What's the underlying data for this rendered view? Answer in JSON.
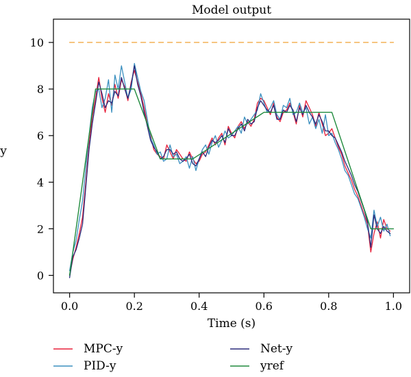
{
  "chart_data": {
    "type": "line",
    "title": "Model output",
    "xlabel": "Time (s)",
    "ylabel": "y",
    "xlim": [
      -0.05,
      1.05
    ],
    "ylim": [
      -0.75,
      11
    ],
    "xticks": [
      0.0,
      0.2,
      0.4,
      0.6,
      0.8,
      1.0
    ],
    "xtick_labels": [
      "0.0",
      "0.2",
      "0.4",
      "0.6",
      "0.8",
      "1.0"
    ],
    "yticks": [
      0,
      2,
      4,
      6,
      8,
      10
    ],
    "ytick_labels": [
      "0",
      "2",
      "4",
      "6",
      "8",
      "10"
    ],
    "grid": false,
    "legend_position": "bottom",
    "colors": {
      "mpc": "#e8203a",
      "pid": "#3a8fbf",
      "net": "#2a2a7a",
      "yref": "#1f8a3c",
      "limit": "#f0a030"
    },
    "series": [
      {
        "name": "MPC-y",
        "color": "#e8203a",
        "dash": "",
        "x": [
          0.0,
          0.01,
          0.02,
          0.03,
          0.04,
          0.05,
          0.06,
          0.07,
          0.08,
          0.09,
          0.1,
          0.11,
          0.12,
          0.13,
          0.14,
          0.15,
          0.16,
          0.17,
          0.18,
          0.19,
          0.2,
          0.21,
          0.22,
          0.23,
          0.24,
          0.25,
          0.26,
          0.27,
          0.28,
          0.29,
          0.3,
          0.31,
          0.32,
          0.33,
          0.34,
          0.35,
          0.36,
          0.37,
          0.38,
          0.39,
          0.4,
          0.41,
          0.42,
          0.43,
          0.44,
          0.45,
          0.46,
          0.47,
          0.48,
          0.49,
          0.5,
          0.51,
          0.52,
          0.53,
          0.54,
          0.55,
          0.56,
          0.57,
          0.58,
          0.59,
          0.6,
          0.61,
          0.62,
          0.63,
          0.64,
          0.65,
          0.66,
          0.67,
          0.68,
          0.69,
          0.7,
          0.71,
          0.72,
          0.73,
          0.74,
          0.75,
          0.76,
          0.77,
          0.78,
          0.79,
          0.8,
          0.81,
          0.82,
          0.83,
          0.84,
          0.85,
          0.86,
          0.87,
          0.88,
          0.89,
          0.9,
          0.91,
          0.92,
          0.93,
          0.94,
          0.95,
          0.96,
          0.97,
          0.98,
          0.99
        ],
        "y": [
          0.0,
          0.7,
          1.2,
          1.8,
          2.5,
          4.0,
          5.6,
          6.8,
          7.6,
          8.5,
          7.6,
          7.0,
          7.8,
          7.3,
          8.2,
          7.6,
          8.4,
          8.1,
          7.5,
          8.3,
          8.8,
          8.3,
          7.8,
          7.2,
          6.5,
          6.0,
          5.4,
          5.2,
          5.1,
          5.0,
          5.6,
          5.3,
          5.0,
          5.4,
          5.2,
          5.0,
          4.9,
          5.3,
          5.0,
          4.8,
          4.9,
          5.2,
          5.3,
          5.6,
          5.9,
          5.6,
          5.9,
          6.1,
          5.6,
          6.4,
          6.1,
          5.9,
          6.4,
          6.6,
          6.3,
          6.6,
          6.4,
          6.7,
          7.4,
          7.6,
          7.5,
          7.2,
          6.9,
          7.4,
          6.8,
          6.6,
          7.0,
          7.1,
          7.4,
          7.0,
          6.5,
          7.3,
          6.8,
          7.5,
          7.2,
          6.9,
          6.4,
          7.0,
          6.5,
          6.0,
          6.1,
          6.3,
          5.9,
          5.5,
          5.2,
          4.7,
          4.4,
          4.1,
          3.7,
          3.4,
          3.0,
          2.6,
          2.2,
          1.0,
          1.8,
          2.3,
          1.6,
          2.4,
          2.0,
          1.9
        ]
      },
      {
        "name": "PID-y",
        "color": "#3a8fbf",
        "dash": "",
        "x": [
          0.0,
          0.01,
          0.02,
          0.03,
          0.04,
          0.05,
          0.06,
          0.07,
          0.08,
          0.09,
          0.1,
          0.11,
          0.12,
          0.13,
          0.14,
          0.15,
          0.16,
          0.17,
          0.18,
          0.19,
          0.2,
          0.21,
          0.22,
          0.23,
          0.24,
          0.25,
          0.26,
          0.27,
          0.28,
          0.29,
          0.3,
          0.31,
          0.32,
          0.33,
          0.34,
          0.35,
          0.36,
          0.37,
          0.38,
          0.39,
          0.4,
          0.41,
          0.42,
          0.43,
          0.44,
          0.45,
          0.46,
          0.47,
          0.48,
          0.49,
          0.5,
          0.51,
          0.52,
          0.53,
          0.54,
          0.55,
          0.56,
          0.57,
          0.58,
          0.59,
          0.6,
          0.61,
          0.62,
          0.63,
          0.64,
          0.65,
          0.66,
          0.67,
          0.68,
          0.69,
          0.7,
          0.71,
          0.72,
          0.73,
          0.74,
          0.75,
          0.76,
          0.77,
          0.78,
          0.79,
          0.8,
          0.81,
          0.82,
          0.83,
          0.84,
          0.85,
          0.86,
          0.87,
          0.88,
          0.89,
          0.9,
          0.91,
          0.92,
          0.93,
          0.94,
          0.95,
          0.96,
          0.97,
          0.98,
          0.99
        ],
        "y": [
          0.2,
          1.0,
          1.5,
          2.4,
          3.2,
          4.6,
          6.0,
          7.2,
          7.9,
          8.0,
          7.2,
          7.6,
          8.4,
          7.0,
          8.6,
          8.0,
          9.0,
          8.3,
          7.6,
          8.0,
          9.1,
          8.5,
          7.9,
          7.5,
          6.7,
          5.9,
          5.6,
          5.2,
          5.3,
          4.9,
          5.0,
          5.6,
          5.1,
          5.2,
          4.8,
          4.9,
          5.1,
          4.6,
          5.1,
          4.5,
          5.0,
          5.4,
          5.6,
          5.2,
          5.7,
          6.0,
          5.5,
          5.8,
          6.2,
          5.9,
          6.0,
          6.2,
          6.4,
          6.1,
          6.8,
          6.5,
          6.7,
          6.9,
          7.1,
          7.8,
          7.4,
          7.0,
          7.2,
          7.5,
          6.9,
          6.7,
          7.3,
          7.2,
          7.6,
          6.9,
          7.0,
          7.4,
          7.0,
          7.2,
          6.5,
          6.8,
          6.3,
          6.7,
          6.1,
          6.9,
          6.0,
          6.1,
          5.7,
          5.4,
          5.0,
          4.5,
          4.3,
          3.9,
          3.5,
          3.3,
          2.9,
          2.5,
          2.0,
          1.6,
          2.8,
          2.1,
          2.5,
          1.9,
          2.2,
          1.7
        ]
      },
      {
        "name": "Net-y",
        "color": "#2a2a7a",
        "dash": "",
        "x": [
          0.0,
          0.01,
          0.02,
          0.03,
          0.04,
          0.05,
          0.06,
          0.07,
          0.08,
          0.09,
          0.1,
          0.11,
          0.12,
          0.13,
          0.14,
          0.15,
          0.16,
          0.17,
          0.18,
          0.19,
          0.2,
          0.21,
          0.22,
          0.23,
          0.24,
          0.25,
          0.26,
          0.27,
          0.28,
          0.29,
          0.3,
          0.31,
          0.32,
          0.33,
          0.34,
          0.35,
          0.36,
          0.37,
          0.38,
          0.39,
          0.4,
          0.41,
          0.42,
          0.43,
          0.44,
          0.45,
          0.46,
          0.47,
          0.48,
          0.49,
          0.5,
          0.51,
          0.52,
          0.53,
          0.54,
          0.55,
          0.56,
          0.57,
          0.58,
          0.59,
          0.6,
          0.61,
          0.62,
          0.63,
          0.64,
          0.65,
          0.66,
          0.67,
          0.68,
          0.69,
          0.7,
          0.71,
          0.72,
          0.73,
          0.74,
          0.75,
          0.76,
          0.77,
          0.78,
          0.79,
          0.8,
          0.81,
          0.82,
          0.83,
          0.84,
          0.85,
          0.86,
          0.87,
          0.88,
          0.89,
          0.9,
          0.91,
          0.92,
          0.93,
          0.94,
          0.95,
          0.96,
          0.97,
          0.98,
          0.99
        ],
        "y": [
          -0.1,
          0.8,
          1.1,
          1.6,
          2.2,
          3.8,
          5.4,
          6.5,
          7.4,
          8.3,
          7.8,
          7.2,
          7.5,
          7.4,
          7.9,
          7.7,
          8.5,
          8.0,
          7.6,
          8.2,
          9.0,
          8.2,
          7.7,
          7.0,
          6.4,
          5.8,
          5.5,
          5.3,
          5.0,
          5.1,
          5.4,
          5.4,
          5.2,
          5.3,
          5.0,
          4.9,
          5.0,
          5.2,
          4.8,
          4.7,
          5.0,
          5.3,
          5.1,
          5.5,
          5.8,
          5.7,
          5.8,
          6.0,
          5.7,
          6.3,
          6.0,
          6.0,
          6.3,
          6.5,
          6.2,
          6.7,
          6.5,
          6.6,
          7.2,
          7.5,
          7.3,
          7.1,
          7.0,
          7.3,
          6.7,
          6.7,
          7.1,
          7.0,
          7.3,
          7.1,
          6.6,
          7.2,
          6.9,
          7.3,
          7.0,
          6.8,
          6.5,
          6.9,
          6.6,
          6.2,
          6.2,
          6.0,
          5.9,
          5.6,
          5.3,
          4.9,
          4.6,
          4.3,
          3.9,
          3.6,
          3.2,
          2.8,
          2.3,
          1.2,
          2.6,
          2.0,
          1.8,
          2.1,
          1.9,
          1.8
        ]
      },
      {
        "name": "yref",
        "color": "#1f8a3c",
        "dash": "",
        "x": [
          0.0,
          0.08,
          0.2,
          0.28,
          0.38,
          0.6,
          0.81,
          0.93,
          1.0
        ],
        "y": [
          0.0,
          8.0,
          8.0,
          5.0,
          5.0,
          7.0,
          7.0,
          2.0,
          2.0
        ]
      },
      {
        "name": "",
        "color": "#f0a030",
        "dash": "7,6",
        "x": [
          0.0,
          1.0
        ],
        "y": [
          10.0,
          10.0
        ]
      }
    ],
    "legend": [
      {
        "label": "MPC-y",
        "color": "#e8203a"
      },
      {
        "label": "PID-y",
        "color": "#3a8fbf"
      },
      {
        "label": "Net-y",
        "color": "#2a2a7a"
      },
      {
        "label": "yref",
        "color": "#1f8a3c"
      }
    ]
  }
}
